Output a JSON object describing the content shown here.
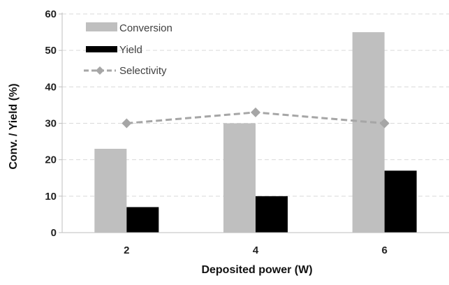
{
  "chart_data": {
    "type": "bar",
    "categories": [
      "2",
      "4",
      "6"
    ],
    "series": [
      {
        "name": "Conversion",
        "kind": "bar",
        "values": [
          23,
          30,
          55
        ],
        "color": "#bfbfbf"
      },
      {
        "name": "Yield",
        "kind": "bar",
        "values": [
          7,
          10,
          17
        ],
        "color": "#000000"
      },
      {
        "name": "Selectivity",
        "kind": "line",
        "values": [
          30,
          33,
          30
        ],
        "color": "#a6a6a6",
        "marker": "diamond",
        "line_style": "dashed"
      }
    ],
    "xlabel": "Deposited power (W)",
    "ylabel": "Conv. / Yield (%)",
    "ylim": [
      0,
      60
    ],
    "yticks": [
      "0",
      "10",
      "20",
      "30",
      "40",
      "50",
      "60"
    ],
    "grid": true,
    "legend": "top-left"
  }
}
